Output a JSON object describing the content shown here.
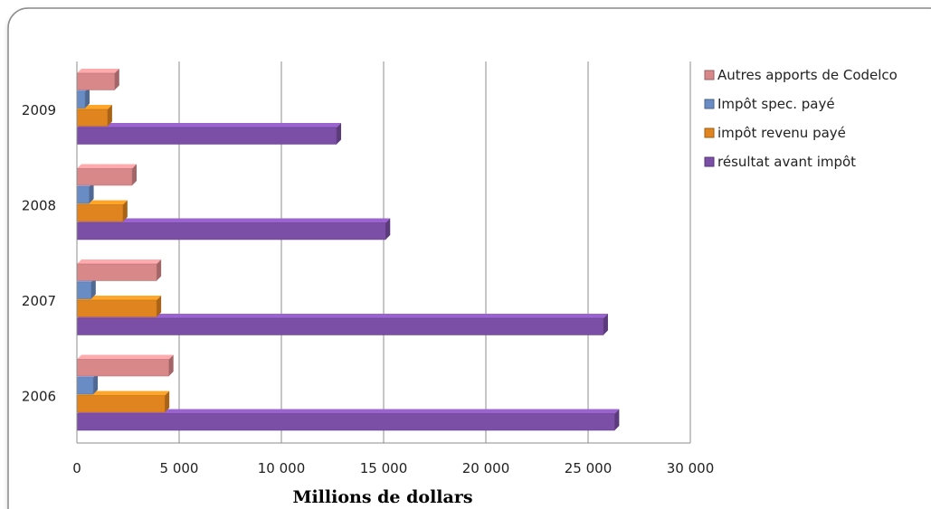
{
  "chart_data": {
    "type": "bar",
    "orientation": "horizontal",
    "categories": [
      "2006",
      "2007",
      "2008",
      "2009"
    ],
    "series": [
      {
        "name": "résultat avant impôt",
        "color": "#7b4fa6",
        "values": [
          26300,
          25750,
          15100,
          12700
        ]
      },
      {
        "name": "impôt revenu payé",
        "color": "#e0841f",
        "values": [
          4300,
          3900,
          2250,
          1500
        ]
      },
      {
        "name": "Impôt spec. payé",
        "color": "#6a8cc4",
        "values": [
          800,
          700,
          600,
          400
        ]
      },
      {
        "name": "Autres apports de Codelco",
        "color": "#d9888a",
        "values": [
          4500,
          3900,
          2700,
          1850
        ]
      }
    ],
    "legend_order": [
      "Autres apports de Codelco",
      "Impôt spec. payé",
      "impôt revenu payé",
      "résultat avant impôt"
    ],
    "legend_position": "right",
    "xlim": [
      0,
      30000
    ],
    "xticks": [
      0,
      5000,
      10000,
      15000,
      20000,
      25000,
      30000
    ],
    "xtick_labels": [
      "0",
      "5 000",
      "10 000",
      "15 000",
      "20 000",
      "25 000",
      "30 000"
    ],
    "xlabel": "Millions de dollars",
    "ylabel": "",
    "title": "",
    "grid": "vertical"
  }
}
